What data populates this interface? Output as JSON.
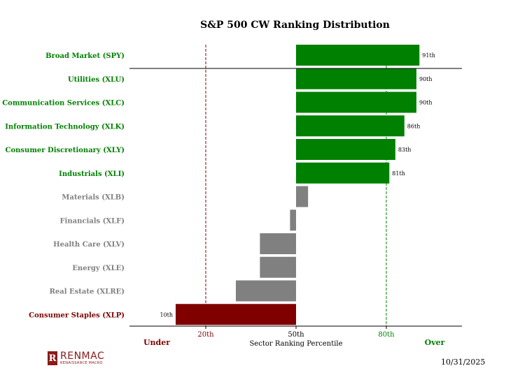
{
  "chart_data": {
    "type": "bar",
    "orientation": "horizontal",
    "title": "S&P 500 CW Ranking Distribution",
    "xlabel": "Sector Ranking Percentile",
    "baseline": 50,
    "xlim": [
      0,
      95
    ],
    "ticks": [
      {
        "value": 20,
        "label": "20th",
        "color": "#800000"
      },
      {
        "value": 50,
        "label": "50th",
        "color": "#000000"
      },
      {
        "value": 80,
        "label": "80th",
        "color": "#008000"
      }
    ],
    "side_labels": {
      "under": "Under",
      "over": "Over"
    },
    "categories": [
      {
        "name": "Broad Market (SPY)",
        "value": 91,
        "label": "91th",
        "group": "over"
      },
      {
        "name": "Utilities (XLU)",
        "value": 90,
        "label": "90th",
        "group": "over"
      },
      {
        "name": "Communication Services (XLC)",
        "value": 90,
        "label": "90th",
        "group": "over"
      },
      {
        "name": "Information Technology (XLK)",
        "value": 86,
        "label": "86th",
        "group": "over"
      },
      {
        "name": "Consumer Discretionary (XLY)",
        "value": 83,
        "label": "83th",
        "group": "over"
      },
      {
        "name": "Industrials (XLI)",
        "value": 81,
        "label": "81th",
        "group": "over"
      },
      {
        "name": "Materials (XLB)",
        "value": 54,
        "label": "",
        "group": "neutral"
      },
      {
        "name": "Financials (XLF)",
        "value": 48,
        "label": "",
        "group": "neutral"
      },
      {
        "name": "Health Care (XLV)",
        "value": 38,
        "label": "",
        "group": "neutral"
      },
      {
        "name": "Energy (XLE)",
        "value": 38,
        "label": "",
        "group": "neutral"
      },
      {
        "name": "Real Estate (XLRE)",
        "value": 30,
        "label": "",
        "group": "neutral"
      },
      {
        "name": "Consumer Staples (XLP)",
        "value": 10,
        "label": "10th",
        "group": "under"
      }
    ],
    "colors": {
      "over": "#008000",
      "neutral": "#808080",
      "under": "#800000"
    },
    "grid": false
  },
  "footer": {
    "date": "10/31/2025",
    "logo_name": "RENMAC",
    "logo_sub": "RENAISSANCE MACRO"
  }
}
